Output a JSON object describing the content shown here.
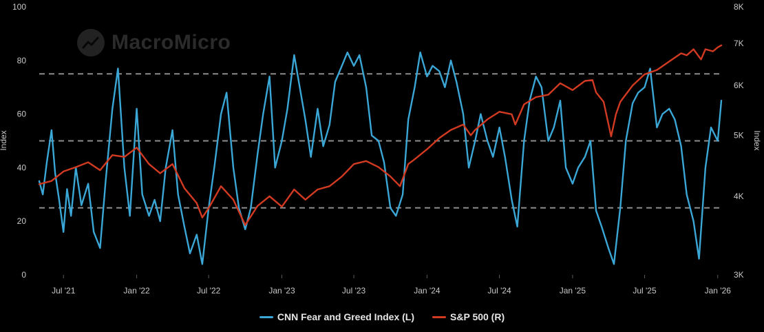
{
  "chart_data": {
    "type": "line",
    "watermark": "MacroMicro",
    "legend_placement": "bottom-center",
    "grid": false,
    "y_left": {
      "label": "Index",
      "ticks": [
        0,
        20,
        40,
        60,
        80,
        100
      ],
      "range": [
        0,
        100
      ]
    },
    "y_right": {
      "label": "Index",
      "scale": "log",
      "ticks": [
        3000,
        4000,
        5000,
        6000,
        7000,
        8000
      ],
      "tick_labels": [
        "3K",
        "4K",
        "5K",
        "6K",
        "7K",
        "8K"
      ],
      "range": [
        3000,
        8000
      ]
    },
    "x_ticks": [
      {
        "date": "2021-07-01",
        "label": "Jul '21"
      },
      {
        "date": "2022-01-01",
        "label": "Jan '22"
      },
      {
        "date": "2022-07-01",
        "label": "Jul '22"
      },
      {
        "date": "2023-01-01",
        "label": "Jan '23"
      },
      {
        "date": "2023-07-01",
        "label": "Jul '23"
      },
      {
        "date": "2024-01-01",
        "label": "Jan '24"
      },
      {
        "date": "2024-07-01",
        "label": "Jul '24"
      },
      {
        "date": "2025-01-01",
        "label": "Jan '25"
      },
      {
        "date": "2025-07-01",
        "label": "Jul '25"
      },
      {
        "date": "2026-01-01",
        "label": "Jan '26"
      }
    ],
    "x_range": [
      "2021-05-01",
      "2026-01-10"
    ],
    "reference_lines": [
      25,
      50,
      75
    ],
    "series": [
      {
        "name": "CNN Fear and Greed Index (L)",
        "color": "#3aa7d6",
        "axis": "left",
        "points": [
          [
            "2021-05-01",
            35
          ],
          [
            "2021-05-10",
            30
          ],
          [
            "2021-05-20",
            42
          ],
          [
            "2021-06-01",
            54
          ],
          [
            "2021-06-10",
            38
          ],
          [
            "2021-06-20",
            28
          ],
          [
            "2021-07-01",
            16
          ],
          [
            "2021-07-10",
            32
          ],
          [
            "2021-07-20",
            22
          ],
          [
            "2021-08-01",
            40
          ],
          [
            "2021-08-15",
            26
          ],
          [
            "2021-09-01",
            34
          ],
          [
            "2021-09-15",
            16
          ],
          [
            "2021-10-01",
            10
          ],
          [
            "2021-10-15",
            35
          ],
          [
            "2021-11-01",
            62
          ],
          [
            "2021-11-15",
            77
          ],
          [
            "2021-12-01",
            40
          ],
          [
            "2021-12-15",
            22
          ],
          [
            "2022-01-01",
            62
          ],
          [
            "2022-01-15",
            30
          ],
          [
            "2022-02-01",
            22
          ],
          [
            "2022-02-15",
            28
          ],
          [
            "2022-03-01",
            20
          ],
          [
            "2022-03-15",
            40
          ],
          [
            "2022-04-01",
            54
          ],
          [
            "2022-04-15",
            30
          ],
          [
            "2022-05-01",
            18
          ],
          [
            "2022-05-15",
            8
          ],
          [
            "2022-06-01",
            15
          ],
          [
            "2022-06-15",
            4
          ],
          [
            "2022-07-01",
            25
          ],
          [
            "2022-07-15",
            40
          ],
          [
            "2022-08-01",
            60
          ],
          [
            "2022-08-15",
            68
          ],
          [
            "2022-09-01",
            40
          ],
          [
            "2022-09-15",
            25
          ],
          [
            "2022-10-01",
            17
          ],
          [
            "2022-10-15",
            25
          ],
          [
            "2022-11-01",
            45
          ],
          [
            "2022-11-15",
            60
          ],
          [
            "2022-12-01",
            74
          ],
          [
            "2022-12-15",
            40
          ],
          [
            "2023-01-01",
            50
          ],
          [
            "2023-01-15",
            62
          ],
          [
            "2023-02-01",
            82
          ],
          [
            "2023-02-15",
            70
          ],
          [
            "2023-03-01",
            58
          ],
          [
            "2023-03-15",
            44
          ],
          [
            "2023-04-01",
            62
          ],
          [
            "2023-04-15",
            48
          ],
          [
            "2023-05-01",
            56
          ],
          [
            "2023-05-15",
            72
          ],
          [
            "2023-06-01",
            78
          ],
          [
            "2023-06-15",
            83
          ],
          [
            "2023-07-01",
            78
          ],
          [
            "2023-07-15",
            82
          ],
          [
            "2023-08-01",
            70
          ],
          [
            "2023-08-15",
            52
          ],
          [
            "2023-09-01",
            50
          ],
          [
            "2023-09-15",
            42
          ],
          [
            "2023-10-01",
            25
          ],
          [
            "2023-10-15",
            22
          ],
          [
            "2023-11-01",
            30
          ],
          [
            "2023-11-15",
            58
          ],
          [
            "2023-12-01",
            70
          ],
          [
            "2023-12-15",
            83
          ],
          [
            "2024-01-01",
            74
          ],
          [
            "2024-01-15",
            78
          ],
          [
            "2024-02-01",
            76
          ],
          [
            "2024-02-15",
            70
          ],
          [
            "2024-03-01",
            80
          ],
          [
            "2024-03-15",
            72
          ],
          [
            "2024-04-01",
            60
          ],
          [
            "2024-04-15",
            40
          ],
          [
            "2024-05-01",
            50
          ],
          [
            "2024-05-15",
            60
          ],
          [
            "2024-06-01",
            50
          ],
          [
            "2024-06-15",
            44
          ],
          [
            "2024-07-01",
            55
          ],
          [
            "2024-07-15",
            44
          ],
          [
            "2024-08-01",
            28
          ],
          [
            "2024-08-15",
            18
          ],
          [
            "2024-09-01",
            50
          ],
          [
            "2024-09-15",
            65
          ],
          [
            "2024-10-01",
            74
          ],
          [
            "2024-10-15",
            70
          ],
          [
            "2024-11-01",
            50
          ],
          [
            "2024-11-15",
            55
          ],
          [
            "2024-12-01",
            65
          ],
          [
            "2024-12-15",
            40
          ],
          [
            "2025-01-01",
            34
          ],
          [
            "2025-01-15",
            40
          ],
          [
            "2025-02-01",
            44
          ],
          [
            "2025-02-15",
            50
          ],
          [
            "2025-03-01",
            24
          ],
          [
            "2025-03-15",
            18
          ],
          [
            "2025-04-01",
            10
          ],
          [
            "2025-04-15",
            4
          ],
          [
            "2025-05-01",
            25
          ],
          [
            "2025-05-15",
            50
          ],
          [
            "2025-06-01",
            64
          ],
          [
            "2025-06-15",
            68
          ],
          [
            "2025-07-01",
            70
          ],
          [
            "2025-07-15",
            77
          ],
          [
            "2025-08-01",
            55
          ],
          [
            "2025-08-15",
            60
          ],
          [
            "2025-09-01",
            62
          ],
          [
            "2025-09-15",
            58
          ],
          [
            "2025-10-01",
            48
          ],
          [
            "2025-10-15",
            30
          ],
          [
            "2025-11-01",
            20
          ],
          [
            "2025-11-15",
            6
          ],
          [
            "2025-12-01",
            40
          ],
          [
            "2025-12-15",
            55
          ],
          [
            "2026-01-01",
            50
          ],
          [
            "2026-01-10",
            65
          ]
        ]
      },
      {
        "name": "S&P 500 (R)",
        "color": "#d23a22",
        "axis": "right",
        "points": [
          [
            "2021-05-01",
            4180
          ],
          [
            "2021-06-01",
            4230
          ],
          [
            "2021-07-01",
            4380
          ],
          [
            "2021-08-01",
            4450
          ],
          [
            "2021-09-01",
            4530
          ],
          [
            "2021-10-01",
            4400
          ],
          [
            "2021-11-01",
            4650
          ],
          [
            "2021-12-01",
            4620
          ],
          [
            "2022-01-01",
            4780
          ],
          [
            "2022-02-01",
            4500
          ],
          [
            "2022-03-01",
            4350
          ],
          [
            "2022-04-01",
            4500
          ],
          [
            "2022-05-01",
            4120
          ],
          [
            "2022-06-01",
            3900
          ],
          [
            "2022-06-15",
            3700
          ],
          [
            "2022-07-01",
            3830
          ],
          [
            "2022-08-01",
            4150
          ],
          [
            "2022-09-01",
            3950
          ],
          [
            "2022-10-01",
            3600
          ],
          [
            "2022-11-01",
            3860
          ],
          [
            "2022-12-01",
            4000
          ],
          [
            "2023-01-01",
            3850
          ],
          [
            "2023-02-01",
            4100
          ],
          [
            "2023-03-01",
            3950
          ],
          [
            "2023-04-01",
            4100
          ],
          [
            "2023-05-01",
            4150
          ],
          [
            "2023-06-01",
            4300
          ],
          [
            "2023-07-01",
            4500
          ],
          [
            "2023-08-01",
            4550
          ],
          [
            "2023-09-01",
            4450
          ],
          [
            "2023-10-01",
            4300
          ],
          [
            "2023-10-25",
            4150
          ],
          [
            "2023-11-15",
            4500
          ],
          [
            "2023-12-01",
            4580
          ],
          [
            "2024-01-01",
            4750
          ],
          [
            "2024-02-01",
            4950
          ],
          [
            "2024-03-01",
            5100
          ],
          [
            "2024-04-01",
            5200
          ],
          [
            "2024-04-20",
            5000
          ],
          [
            "2024-05-01",
            5100
          ],
          [
            "2024-06-01",
            5300
          ],
          [
            "2024-07-01",
            5450
          ],
          [
            "2024-08-01",
            5400
          ],
          [
            "2024-08-10",
            5200
          ],
          [
            "2024-09-01",
            5600
          ],
          [
            "2024-10-01",
            5750
          ],
          [
            "2024-11-01",
            5800
          ],
          [
            "2024-12-01",
            6050
          ],
          [
            "2025-01-01",
            5900
          ],
          [
            "2025-02-01",
            6100
          ],
          [
            "2025-02-20",
            6120
          ],
          [
            "2025-03-01",
            5850
          ],
          [
            "2025-03-20",
            5650
          ],
          [
            "2025-04-08",
            4980
          ],
          [
            "2025-04-20",
            5400
          ],
          [
            "2025-05-01",
            5650
          ],
          [
            "2025-06-01",
            6000
          ],
          [
            "2025-07-01",
            6250
          ],
          [
            "2025-08-01",
            6350
          ],
          [
            "2025-09-01",
            6550
          ],
          [
            "2025-10-01",
            6750
          ],
          [
            "2025-10-15",
            6700
          ],
          [
            "2025-11-01",
            6850
          ],
          [
            "2025-11-20",
            6600
          ],
          [
            "2025-12-01",
            6850
          ],
          [
            "2025-12-20",
            6800
          ],
          [
            "2026-01-01",
            6900
          ],
          [
            "2026-01-10",
            6950
          ]
        ]
      }
    ]
  }
}
